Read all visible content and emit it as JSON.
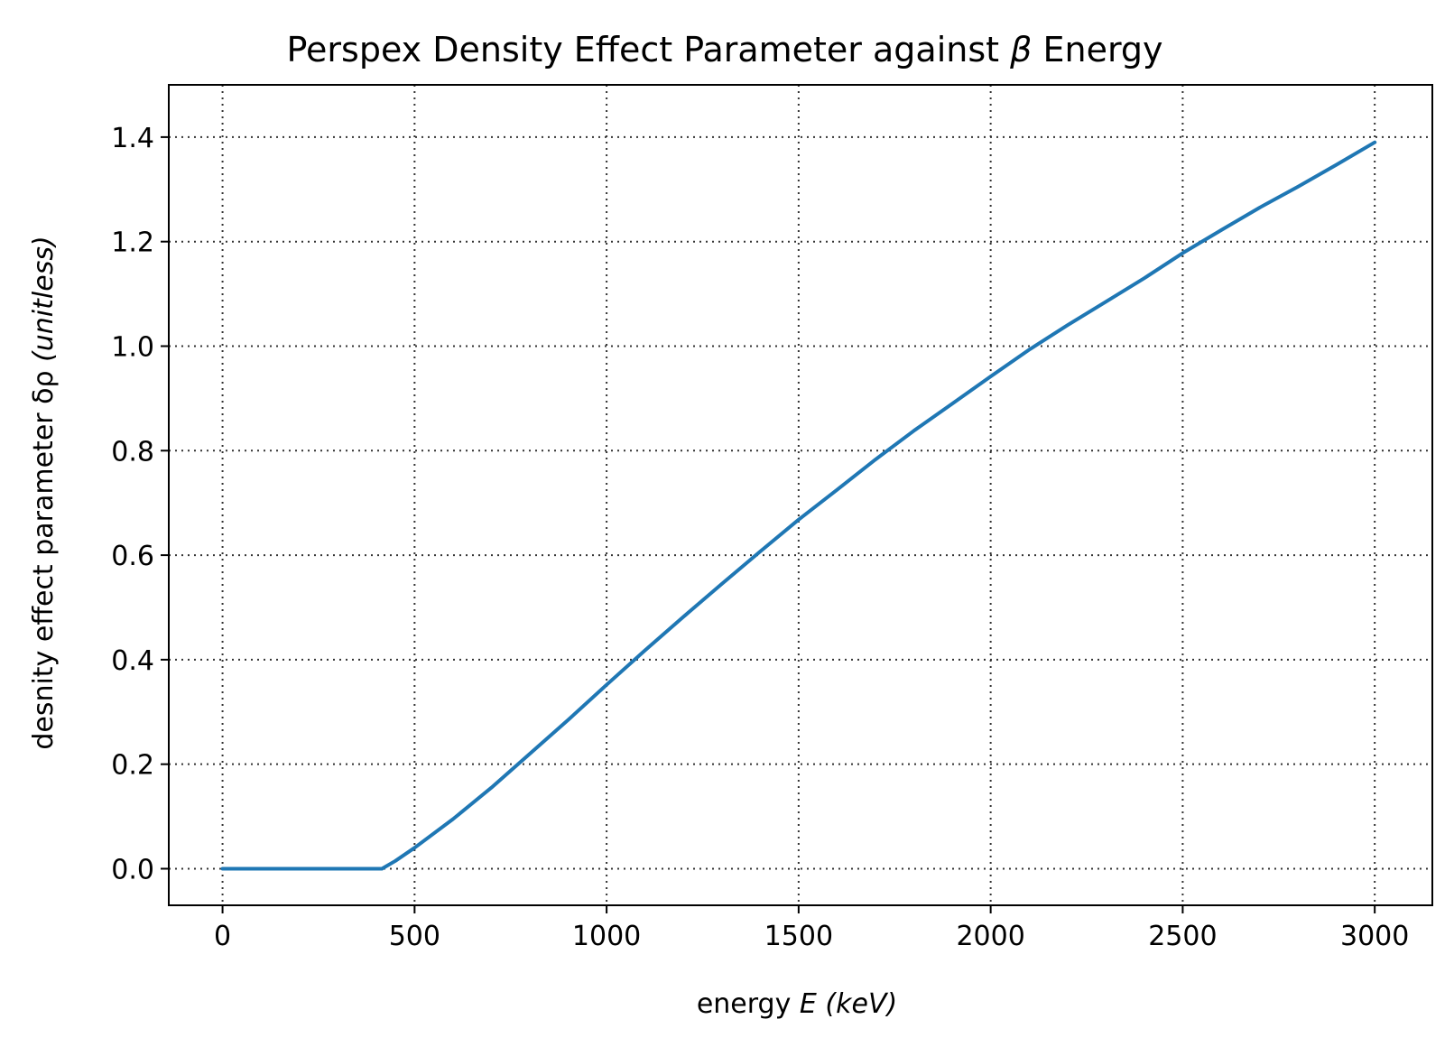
{
  "chart_data": {
    "type": "line",
    "title": {
      "pre": "Perspex Density Effect Parameter against ",
      "sym": "β",
      "post": " Energy"
    },
    "xlabel": {
      "pre": "energy ",
      "sym": "E",
      "unit": "(keV)"
    },
    "ylabel": {
      "pre": "desnity effect parameter δρ ",
      "unit": "(unitless)"
    },
    "xlim": [
      -140,
      3150
    ],
    "ylim": [
      -0.07,
      1.5
    ],
    "xticks": [
      0,
      500,
      1000,
      1500,
      2000,
      2500,
      3000
    ],
    "yticks": [
      0.0,
      0.2,
      0.4,
      0.6,
      0.8,
      1.0,
      1.2,
      1.4
    ],
    "ytick_labels": [
      "0.0",
      "0.2",
      "0.4",
      "0.6",
      "0.8",
      "1.0",
      "1.2",
      "1.4"
    ],
    "grid": true,
    "colors": {
      "series": "#1f77b4"
    },
    "series": [
      {
        "x": [
          0,
          100,
          200,
          300,
          415,
          450,
          500,
          600,
          700,
          800,
          900,
          1000,
          1100,
          1200,
          1300,
          1400,
          1500,
          1600,
          1700,
          1800,
          1900,
          2000,
          2100,
          2200,
          2300,
          2400,
          2500,
          2600,
          2700,
          2800,
          2900,
          3000
        ],
        "y": [
          0,
          0,
          0,
          0,
          0,
          0.015,
          0.04,
          0.095,
          0.155,
          0.22,
          0.285,
          0.352,
          0.418,
          0.482,
          0.545,
          0.607,
          0.668,
          0.725,
          0.783,
          0.838,
          0.89,
          0.942,
          0.993,
          1.04,
          1.085,
          1.13,
          1.178,
          1.222,
          1.265,
          1.305,
          1.347,
          1.39
        ]
      }
    ]
  }
}
